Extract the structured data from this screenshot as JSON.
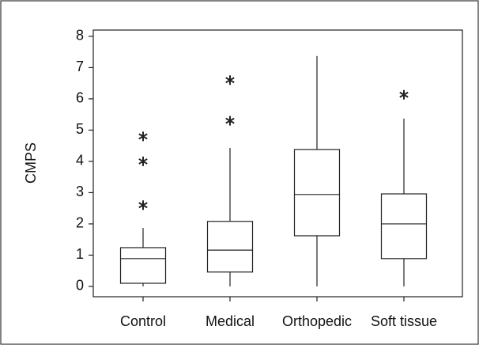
{
  "chart_data": {
    "type": "box",
    "y_label": "CMPS",
    "categories": [
      "Control",
      "Medical",
      "Orthopedic",
      "Soft tissue"
    ],
    "boxes": [
      {
        "min": 0,
        "q1": 0.1,
        "median": 0.89,
        "q3": 1.24,
        "max": 1.87,
        "outliers": [
          2.6,
          4.0,
          4.8
        ]
      },
      {
        "min": 0,
        "q1": 0.46,
        "median": 1.16,
        "q3": 2.08,
        "max": 4.43,
        "outliers": [
          5.3,
          6.6
        ]
      },
      {
        "min": 0,
        "q1": 1.62,
        "median": 2.94,
        "q3": 4.38,
        "max": 7.37,
        "outliers": []
      },
      {
        "min": 0,
        "q1": 0.89,
        "median": 2.0,
        "q3": 2.96,
        "max": 5.37,
        "outliers": [
          6.13
        ]
      }
    ],
    "ylim": [
      -0.33,
      8.2
    ],
    "yticks": [
      0,
      1,
      2,
      3,
      4,
      5,
      6,
      7,
      8
    ],
    "color": "#222222"
  }
}
